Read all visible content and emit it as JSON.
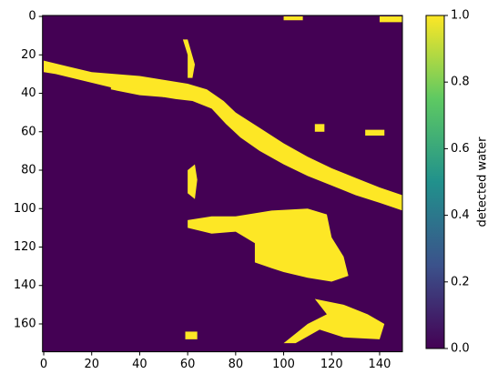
{
  "chart_data": {
    "type": "image",
    "xlim": [
      -0.5,
      149.5
    ],
    "ylim": [
      174.5,
      -0.5
    ],
    "xticks": [
      0,
      20,
      40,
      60,
      80,
      100,
      120,
      140
    ],
    "yticks": [
      0,
      20,
      40,
      60,
      80,
      100,
      120,
      140,
      160
    ],
    "background_value": 0,
    "clim": [
      0,
      1
    ],
    "colormap": [
      "#440154",
      "#3b528b",
      "#21918c",
      "#5ec962",
      "#fde725"
    ],
    "colorbar_label": "detected water",
    "colorbar_ticks": [
      {
        "value": 0,
        "label": "0.0"
      },
      {
        "value": 0.2,
        "label": "0.2"
      },
      {
        "value": 0.4,
        "label": "0.4"
      },
      {
        "value": 0.6,
        "label": "0.6"
      },
      {
        "value": 0.8,
        "label": "0.8"
      },
      {
        "value": 1,
        "label": "1.0"
      }
    ],
    "regions": [
      {
        "value": 1,
        "x": [
          0,
          10,
          20,
          30,
          40,
          50,
          60,
          68,
          75,
          80,
          90,
          100,
          110,
          120,
          130,
          140,
          149.5,
          149.5,
          140,
          130,
          120,
          110,
          100,
          90,
          82,
          76,
          70,
          62,
          55,
          45,
          35,
          25,
          15,
          5,
          0
        ],
        "y": [
          23,
          26,
          29,
          30,
          31,
          33,
          35,
          38,
          44,
          50,
          58,
          66,
          73,
          79,
          84,
          89,
          93,
          101,
          97,
          93,
          88,
          83,
          77,
          70,
          63,
          56,
          48,
          44,
          43,
          41,
          39,
          36,
          33,
          30,
          29
        ]
      },
      {
        "value": 1,
        "x": [
          28,
          40,
          50,
          55,
          58,
          50,
          40,
          28
        ],
        "y": [
          36,
          38,
          40,
          37,
          38,
          42,
          41,
          38
        ]
      },
      {
        "value": 1,
        "x": [
          60,
          70,
          80,
          95,
          110,
          118,
          120,
          125,
          127,
          120,
          110,
          100,
          95,
          88,
          88,
          80,
          70,
          60
        ],
        "y": [
          106,
          104,
          104,
          101,
          100,
          103,
          115,
          125,
          135,
          138,
          136,
          133,
          131,
          128,
          118,
          112,
          113,
          110
        ]
      },
      {
        "value": 1,
        "x": [
          113,
          125,
          135,
          142,
          140,
          125,
          115,
          105,
          100,
          110,
          118
        ],
        "y": [
          147,
          150,
          155,
          160,
          168,
          167,
          163,
          170,
          170,
          160,
          155
        ]
      },
      {
        "value": 1,
        "x": [
          58,
          60,
          63,
          62,
          60,
          60
        ],
        "y": [
          12,
          12,
          25,
          32,
          32,
          20
        ]
      },
      {
        "value": 1,
        "x": [
          60,
          63,
          64,
          63,
          60
        ],
        "y": [
          80,
          77,
          85,
          95,
          92
        ]
      },
      {
        "value": 1,
        "x": [
          134,
          142,
          142,
          134
        ],
        "y": [
          59,
          59,
          62,
          62
        ]
      },
      {
        "value": 1,
        "x": [
          113,
          117,
          117,
          113
        ],
        "y": [
          56,
          56,
          60,
          60
        ]
      },
      {
        "value": 1,
        "x": [
          59,
          64,
          64,
          59
        ],
        "y": [
          164,
          164,
          168,
          168
        ]
      },
      {
        "value": 1,
        "x": [
          140,
          149.5,
          149.5,
          140
        ],
        "y": [
          0,
          0,
          3,
          3
        ]
      },
      {
        "value": 1,
        "x": [
          100,
          108,
          108,
          100
        ],
        "y": [
          0,
          0,
          2,
          2
        ]
      }
    ]
  }
}
